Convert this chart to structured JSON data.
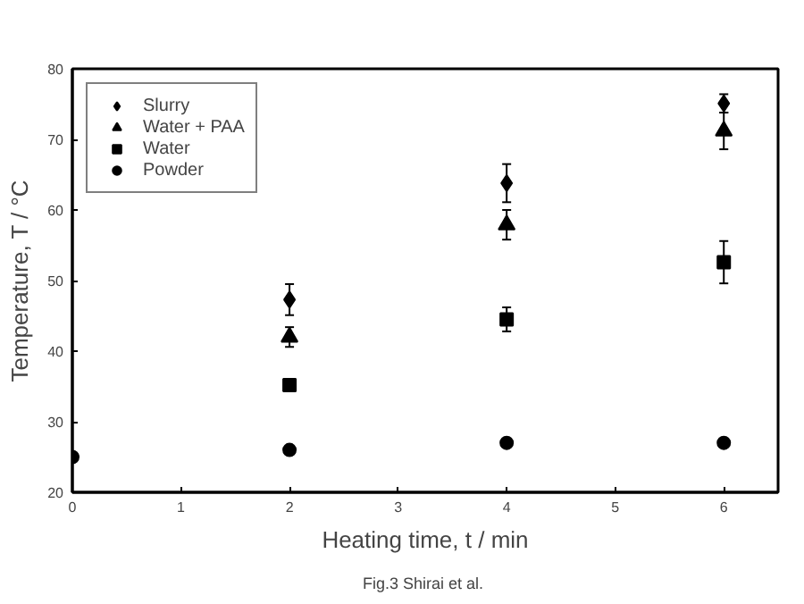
{
  "chart_data": {
    "type": "scatter",
    "xlabel": "Heating time, t / min",
    "ylabel": "Temperature, T / °C",
    "x": [
      0,
      2,
      4,
      6
    ],
    "xlim": [
      0,
      6.5
    ],
    "xticks": [
      0,
      1,
      2,
      3,
      4,
      5,
      6
    ],
    "ylim": [
      20,
      80
    ],
    "yticks": [
      20,
      30,
      40,
      50,
      60,
      70,
      80
    ],
    "series": [
      {
        "name": "Slurry",
        "color": "#000000",
        "marker": "diamond",
        "values": [
          null,
          47.3,
          63.8,
          75.1
        ],
        "errors": [
          null,
          2.2,
          2.7,
          1.3
        ]
      },
      {
        "name": "Water + PAA",
        "color": "#000000",
        "marker": "triangle",
        "values": [
          null,
          42.0,
          57.9,
          71.2
        ],
        "errors": [
          null,
          1.4,
          2.1,
          2.6
        ]
      },
      {
        "name": "Water",
        "color": "#000000",
        "marker": "square",
        "values": [
          null,
          35.2,
          44.5,
          52.6
        ],
        "errors": [
          null,
          0.5,
          1.7,
          3.0
        ]
      },
      {
        "name": "Powder",
        "color": "#000000",
        "marker": "circle",
        "values": [
          25,
          26.0,
          27.0,
          27.0
        ]
      }
    ],
    "legend": "top left",
    "grid": false,
    "annotations": [
      "Fig.3  Shirai et al."
    ]
  }
}
